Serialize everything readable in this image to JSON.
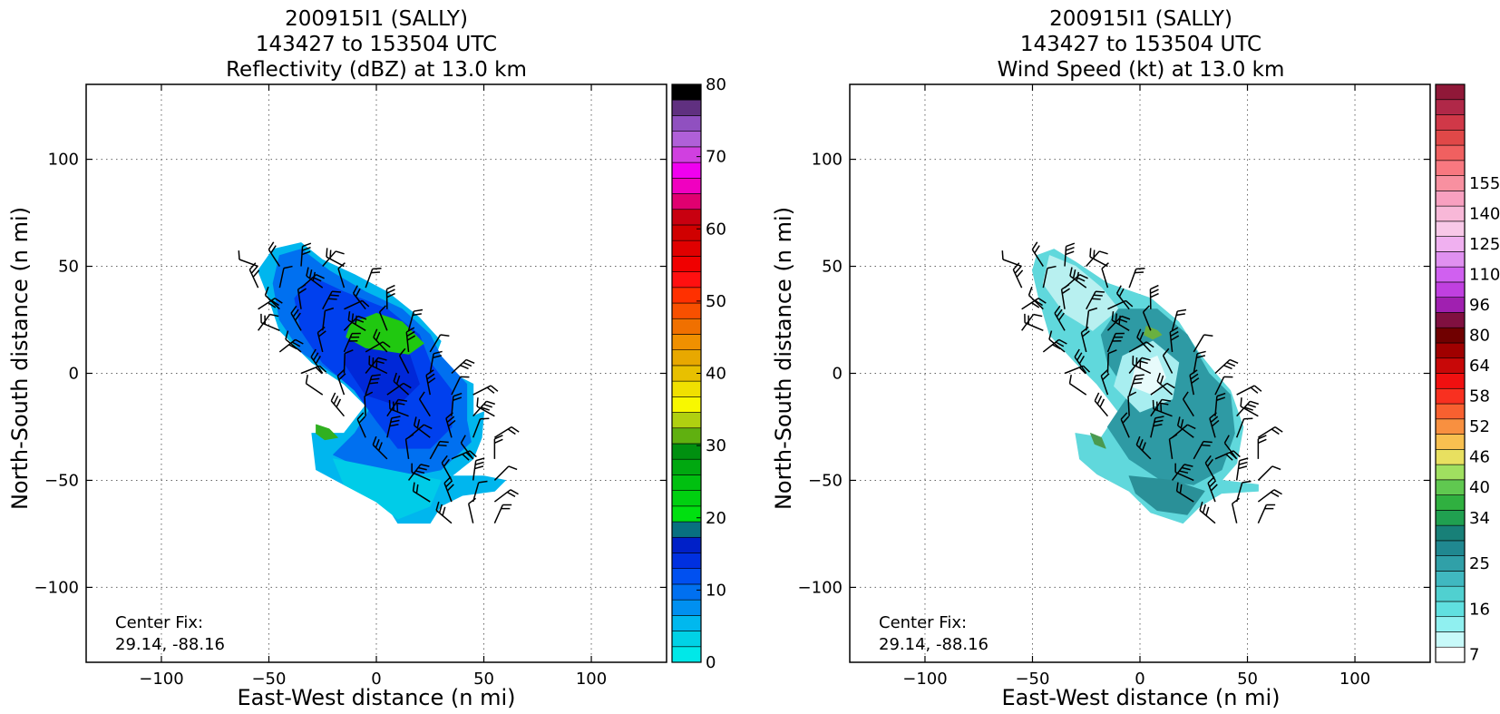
{
  "chart_data": [
    {
      "type": "heatmap",
      "title_lines": [
        "200915I1 (SALLY)",
        "143427 to 153504 UTC",
        "Reflectivity (dBZ) at 13.0 km"
      ],
      "xlabel": "East-West distance (n mi)",
      "ylabel": "North-South distance (n mi)",
      "xlim": [
        -135,
        135
      ],
      "ylim": [
        -135,
        135
      ],
      "xticks": [
        -100,
        -50,
        0,
        50,
        100
      ],
      "yticks": [
        -100,
        -50,
        0,
        50,
        100
      ],
      "grid": true,
      "annotation": [
        "Center Fix:",
        "29.14, -88.16"
      ],
      "colorbar": {
        "min": 0,
        "max": 80,
        "tick_values": [
          0,
          10,
          20,
          30,
          40,
          50,
          60,
          70,
          80
        ],
        "tick_labels": [
          "0",
          "10",
          "20",
          "30",
          "40",
          "50",
          "60",
          "70",
          "80"
        ],
        "colors": [
          "#00e8e8",
          "#00d2e6",
          "#00b8ee",
          "#0090f0",
          "#0070f0",
          "#0050f0",
          "#0030e0",
          "#0020c8",
          "#087080",
          "#00e010",
          "#00d010",
          "#00c010",
          "#00a810",
          "#009010",
          "#60b010",
          "#b0d010",
          "#f8f800",
          "#f0e000",
          "#e8c000",
          "#e8a800",
          "#f09000",
          "#f07000",
          "#f85000",
          "#ff3000",
          "#ff1010",
          "#f00000",
          "#e00000",
          "#d00000",
          "#c80010",
          "#e00070",
          "#f000c0",
          "#f000f0",
          "#d040e0",
          "#b060d8",
          "#9050c0",
          "#603080",
          "#000000"
        ]
      },
      "features": {
        "storm_region": "NW-SE elongated echo from about (-55, 55) to (55, -70)",
        "cores": [
          "green patch near (10, 18)",
          "green patch near (-20, -28)"
        ]
      }
    },
    {
      "type": "heatmap",
      "title_lines": [
        "200915I1 (SALLY)",
        "143427 to 153504 UTC",
        "Wind Speed (kt) at 13.0 km"
      ],
      "xlabel": "East-West distance (n mi)",
      "ylabel": "North-South distance (n mi)",
      "xlim": [
        -135,
        135
      ],
      "ylim": [
        -135,
        135
      ],
      "xticks": [
        -100,
        -50,
        0,
        50,
        100
      ],
      "yticks": [
        -100,
        -50,
        0,
        50,
        100
      ],
      "grid": true,
      "annotation": [
        "Center Fix:",
        "29.14, -88.16"
      ],
      "colorbar": {
        "labels": [
          "7",
          "16",
          "25",
          "34",
          "40",
          "46",
          "52",
          "58",
          "64",
          "80",
          "96",
          "110",
          "125",
          "140",
          "155"
        ],
        "label_slots": [
          0,
          3,
          6,
          9,
          11,
          13,
          15,
          17,
          19,
          21,
          23,
          25,
          27,
          29,
          31
        ],
        "colors": [
          "#ffffff",
          "#c8fafa",
          "#90f0f0",
          "#60e0e0",
          "#50d0d0",
          "#40b8c0",
          "#30a0a8",
          "#208890",
          "#188078",
          "#20a050",
          "#30b040",
          "#60c850",
          "#a0e060",
          "#e8e060",
          "#f8c050",
          "#f89040",
          "#f86030",
          "#f83020",
          "#f01010",
          "#c80808",
          "#a00000",
          "#700000",
          "#801040",
          "#a020b0",
          "#c040e0",
          "#d060f0",
          "#e090f0",
          "#f0b0f0",
          "#f8c8e8",
          "#f8b8d8",
          "#f8a0c0",
          "#f890a0",
          "#f87880",
          "#f06060",
          "#e04848",
          "#d03848",
          "#b02848",
          "#901838"
        ]
      },
      "features": {
        "storm_region": "NW-SE elongated wind field from about (-55, 55) to (55, -70)",
        "eye": "light cyan ring near (5, -5)"
      }
    }
  ]
}
